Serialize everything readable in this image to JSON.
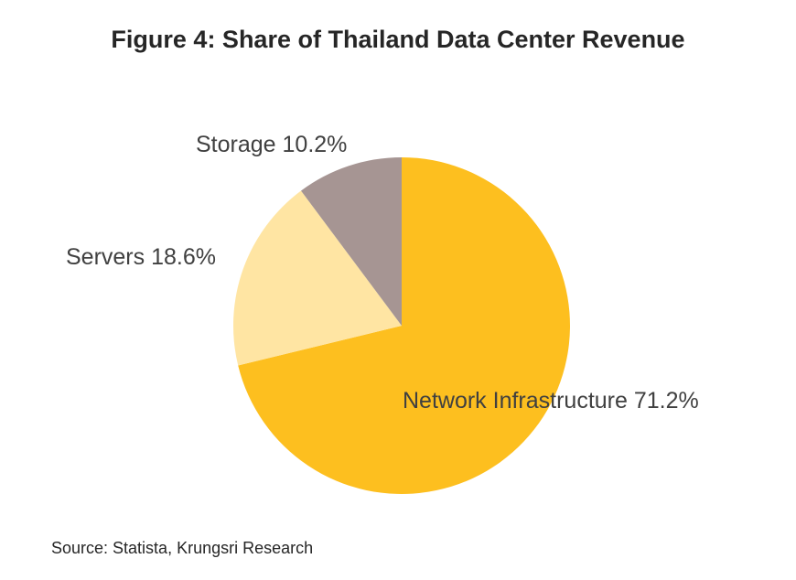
{
  "title": "Figure 4: Share of Thailand Data Center Revenue",
  "source": "Source: Statista, Krungsri Research",
  "chart_data": {
    "type": "pie",
    "title": "Figure 4: Share of Thailand Data Center Revenue",
    "unit": "%",
    "slices": [
      {
        "label": "Network Infrastructure",
        "value": 71.2,
        "display": "Network Infrastructure 71.2%",
        "color": "#FDBF1F"
      },
      {
        "label": "Servers",
        "value": 18.6,
        "display": "Servers 18.6%",
        "color": "#FFE5A3"
      },
      {
        "label": "Storage",
        "value": 10.2,
        "display": "Storage 10.2%",
        "color": "#A69593"
      }
    ]
  }
}
